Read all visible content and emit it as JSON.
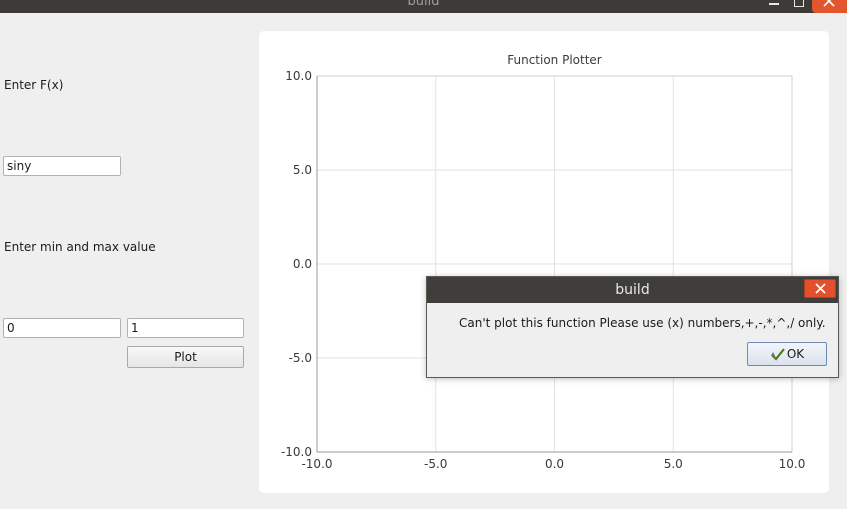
{
  "window": {
    "title": "build"
  },
  "form": {
    "fx_label": "Enter F(x)",
    "fx_value": "siny",
    "range_label": "Enter min and max value",
    "min_value": "0",
    "max_value": "1",
    "plot_button": "Plot"
  },
  "chart_data": {
    "type": "line",
    "title": "Function Plotter",
    "xlim": [
      -10,
      10
    ],
    "ylim": [
      -10,
      10
    ],
    "x_ticks": [
      "-10.0",
      "-5.0",
      "0.0",
      "5.0",
      "10.0"
    ],
    "y_ticks": [
      "10.0",
      "5.0",
      "0.0",
      "-5.0",
      "-10.0"
    ],
    "grid": true,
    "series": []
  },
  "dialog": {
    "title": "build",
    "message": "Can't plot this function Please use (x) numbers,+,-,*,^,/ only.",
    "ok_label": "OK"
  },
  "colors": {
    "titlebar": "#3c3b37",
    "close_button": "#e2562e",
    "grid": "#e2e2e2"
  }
}
